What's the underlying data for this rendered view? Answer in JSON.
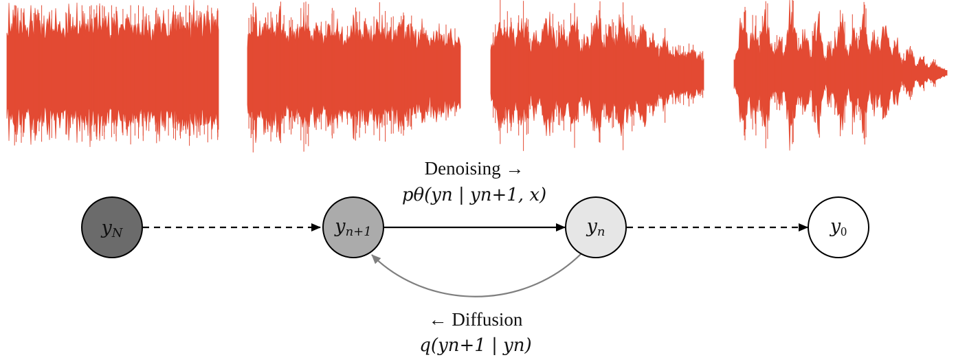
{
  "colors": {
    "waveform": "#e34a33",
    "node_yN": "#6b6b6b",
    "node_yn1": "#ababab",
    "node_yn": "#e6e6e6",
    "node_y0": "#ffffff",
    "diffusion_arrow": "#7f7f7f",
    "stroke": "#000000"
  },
  "waveforms": [
    {
      "name": "waveform-noise-level-1",
      "noise_level": 1.0,
      "seed": 3
    },
    {
      "name": "waveform-noise-level-2",
      "noise_level": 0.62,
      "seed": 11
    },
    {
      "name": "waveform-noise-level-3",
      "noise_level": 0.28,
      "seed": 29
    },
    {
      "name": "waveform-noise-level-4",
      "noise_level": 0.03,
      "seed": 47
    }
  ],
  "nodes": {
    "yN": {
      "base": "y",
      "sub": "N"
    },
    "yn1": {
      "base": "y",
      "sub": "n+1"
    },
    "yn": {
      "base": "y",
      "sub": "n"
    },
    "y0": {
      "base": "y",
      "sub": "0"
    }
  },
  "labels": {
    "denoising_title": "Denoising →",
    "denoising_formula": "pθ(yn | yn+1, x)",
    "diffusion_title": "← Diffusion",
    "diffusion_formula": "q(yn+1 | yn)"
  }
}
